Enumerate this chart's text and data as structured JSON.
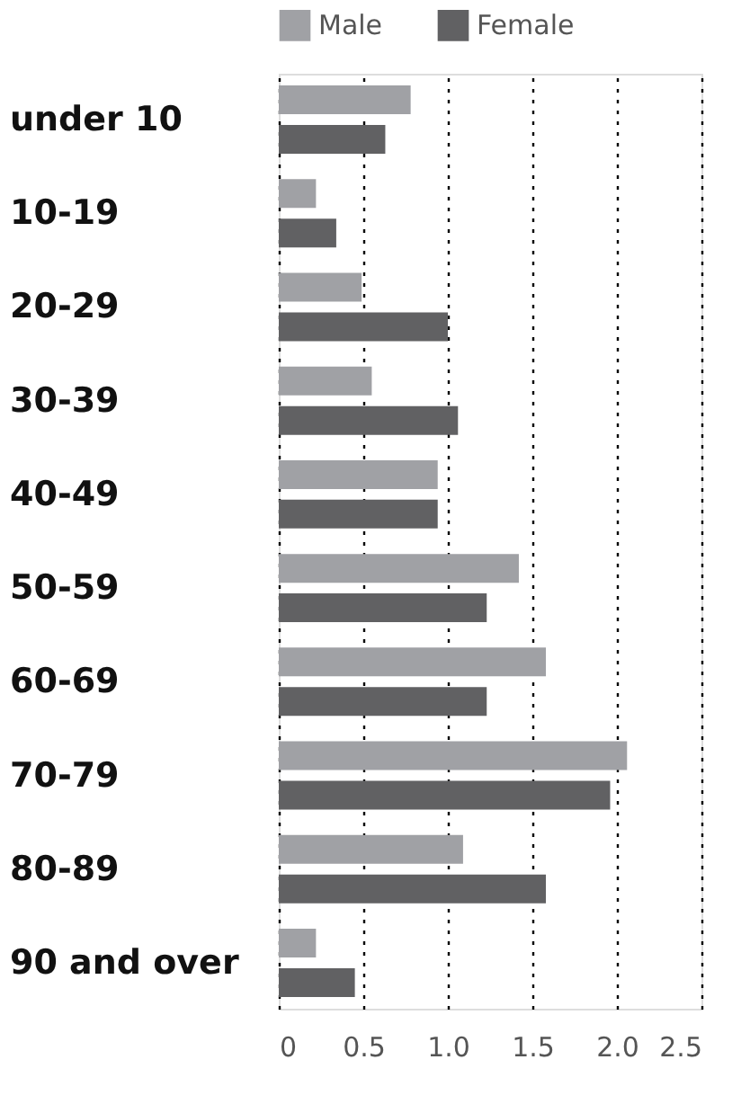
{
  "chart_data": {
    "type": "bar",
    "orientation": "horizontal",
    "categories": [
      "under 10",
      "10-19",
      "20-29",
      "30-39",
      "40-49",
      "50-59",
      "60-69",
      "70-79",
      "80-89",
      "90 and over"
    ],
    "series": [
      {
        "name": "Male",
        "color": "#a0a1a5",
        "values": [
          0.78,
          0.22,
          0.49,
          0.55,
          0.94,
          1.42,
          1.58,
          2.06,
          1.09,
          0.22
        ]
      },
      {
        "name": "Female",
        "color": "#616163",
        "values": [
          0.63,
          0.34,
          1.0,
          1.06,
          0.94,
          1.23,
          1.23,
          1.96,
          1.58,
          0.45
        ]
      }
    ],
    "xlim": [
      0,
      2.5
    ],
    "xticks": [
      0,
      {
        "value": 0.5,
        "label": "0.5"
      },
      {
        "value": 1,
        "label": "1.0"
      },
      {
        "value": 1.5,
        "label": "1.5"
      },
      {
        "value": 2,
        "label": "2.0"
      },
      {
        "value": 2.5,
        "label": "2.5"
      }
    ],
    "grid": "x",
    "legend": "top"
  }
}
